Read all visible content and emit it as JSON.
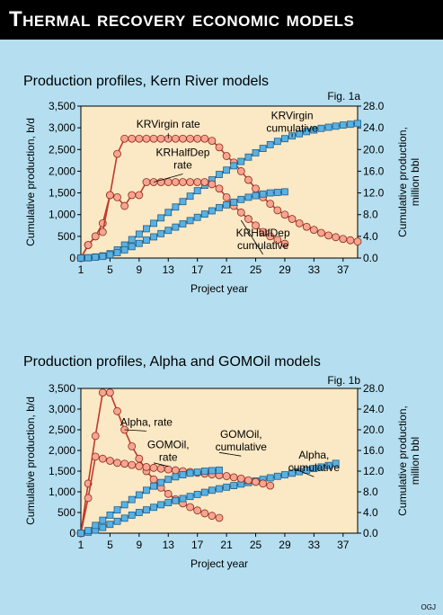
{
  "header": {
    "title": "Thermal recovery economic models"
  },
  "credit": "OGJ",
  "colors": {
    "background": "#b5dff0",
    "plot_area": "#fbe8c4",
    "rate_marker": "#f7a491",
    "rate_line": "#c0392b",
    "cumulative_marker": "#59b1e2",
    "cumulative_line": "#1f5e8a",
    "header": "#000000"
  },
  "chart_data": [
    {
      "type": "line",
      "title": "Production profiles, Kern River models",
      "figure_label": "Fig. 1a",
      "xlabel": "Project year",
      "ylabel": "Cumulative production, b/d",
      "y2label_lines": [
        "Cumulative production,",
        "million bbl"
      ],
      "xlim": [
        1,
        39
      ],
      "ylim": [
        0,
        3500
      ],
      "y2lim": [
        0,
        28
      ],
      "xticks": [
        "1",
        "5",
        "9",
        "13",
        "17",
        "21",
        "25",
        "29",
        "33",
        "37"
      ],
      "yticks": [
        "0",
        "500",
        "1,000",
        "1,500",
        "2,000",
        "2,500",
        "3,000",
        "3,500"
      ],
      "y2ticks": [
        "0.0",
        "4.0",
        "8.0",
        "12.0",
        "16.0",
        "20.0",
        "24.0",
        "28.0"
      ],
      "grid": false,
      "series": [
        {
          "name": "KRVirgin rate",
          "axis": "left",
          "kind": "rate",
          "x": [
            1,
            2,
            3,
            4,
            5,
            6,
            7,
            8,
            9,
            10,
            11,
            12,
            13,
            14,
            15,
            16,
            17,
            18,
            19,
            20,
            21,
            22,
            23,
            24,
            25,
            26,
            27,
            28,
            29,
            30,
            31,
            32,
            33,
            34,
            35,
            36,
            37,
            38,
            39
          ],
          "y": [
            0,
            300,
            500,
            800,
            1450,
            2400,
            2750,
            2750,
            2750,
            2750,
            2750,
            2750,
            2750,
            2750,
            2750,
            2750,
            2750,
            2750,
            2700,
            2550,
            2350,
            2200,
            2000,
            1800,
            1600,
            1400,
            1250,
            1100,
            1000,
            900,
            800,
            720,
            650,
            580,
            520,
            480,
            440,
            410,
            380
          ]
        },
        {
          "name": "KRVirgin cumulative",
          "axis": "right",
          "kind": "cumulative",
          "x": [
            1,
            2,
            3,
            4,
            5,
            6,
            7,
            8,
            9,
            10,
            11,
            12,
            13,
            14,
            15,
            16,
            17,
            18,
            19,
            20,
            21,
            22,
            23,
            24,
            25,
            26,
            27,
            28,
            29,
            30,
            31,
            32,
            33,
            34,
            35,
            36,
            37,
            38,
            39
          ],
          "y": [
            0,
            0.05,
            0.2,
            0.4,
            0.8,
            1.5,
            2.4,
            3.4,
            4.4,
            5.4,
            6.4,
            7.4,
            8.4,
            9.4,
            10.4,
            11.4,
            12.4,
            13.4,
            14.4,
            15.4,
            16.2,
            17.0,
            17.8,
            18.6,
            19.4,
            20.2,
            20.9,
            21.5,
            22.0,
            22.5,
            22.9,
            23.3,
            23.6,
            23.9,
            24.1,
            24.3,
            24.5,
            24.65,
            24.8
          ]
        },
        {
          "name": "KRHalfDep rate",
          "axis": "left",
          "kind": "rate",
          "x": [
            1,
            2,
            3,
            4,
            5,
            6,
            7,
            8,
            9,
            10,
            11,
            12,
            13,
            14,
            15,
            16,
            17,
            18,
            19,
            20,
            21,
            22,
            23,
            24,
            25,
            26,
            27,
            28,
            29
          ],
          "y": [
            0,
            300,
            500,
            600,
            1450,
            1400,
            1200,
            1450,
            1450,
            1750,
            1750,
            1750,
            1750,
            1750,
            1750,
            1750,
            1750,
            1750,
            1700,
            1600,
            1400,
            1200,
            1050,
            900,
            750,
            600,
            500,
            420,
            330
          ]
        },
        {
          "name": "KRHalfDep cumulative",
          "axis": "right",
          "kind": "cumulative",
          "x": [
            1,
            2,
            3,
            4,
            5,
            6,
            7,
            8,
            9,
            10,
            11,
            12,
            13,
            14,
            15,
            16,
            17,
            18,
            19,
            20,
            21,
            22,
            23,
            24,
            25,
            26,
            27,
            28,
            29
          ],
          "y": [
            0,
            0.05,
            0.15,
            0.3,
            0.6,
            1.0,
            1.5,
            2.1,
            2.7,
            3.3,
            3.9,
            4.5,
            5.1,
            5.7,
            6.3,
            6.9,
            7.5,
            8.1,
            8.7,
            9.3,
            9.8,
            10.3,
            10.8,
            11.2,
            11.5,
            11.8,
            12.0,
            12.1,
            12.2
          ]
        }
      ],
      "annotations": [
        {
          "text": [
            "KRVirgin rate"
          ],
          "x": 13,
          "y": 3000,
          "target": [
            13,
            2750
          ]
        },
        {
          "text": [
            "KRVirgin",
            "cumulative"
          ],
          "x": 30,
          "y": 3200,
          "target": [
            30,
            2870
          ]
        },
        {
          "text": [
            "KRHalfDep",
            "rate"
          ],
          "x": 15,
          "y": 2350,
          "target": [
            11,
            1750
          ]
        },
        {
          "text": [
            "KRHalfDep",
            "cumulative"
          ],
          "x": 26,
          "y": 500,
          "target": [
            23,
            870
          ]
        }
      ]
    },
    {
      "type": "line",
      "title": "Production profiles, Alpha and GOMOil models",
      "figure_label": "Fig. 1b",
      "xlabel": "Project year",
      "ylabel": "Cumulative production, b/d",
      "y2label_lines": [
        "Cumulative production,",
        "million bbl"
      ],
      "xlim": [
        1,
        39
      ],
      "ylim": [
        0,
        3500
      ],
      "y2lim": [
        0,
        28
      ],
      "xticks": [
        "1",
        "5",
        "9",
        "13",
        "17",
        "21",
        "25",
        "29",
        "33",
        "37"
      ],
      "yticks": [
        "0",
        "500",
        "1,000",
        "1,500",
        "2,000",
        "2,500",
        "3,000",
        "3,500"
      ],
      "y2ticks": [
        "0.0",
        "4.0",
        "8.0",
        "12.0",
        "16.0",
        "20.0",
        "24.0",
        "28.0"
      ],
      "grid": false,
      "series": [
        {
          "name": "Alpha, rate",
          "axis": "left",
          "kind": "rate",
          "x": [
            1,
            2,
            3,
            4,
            5,
            6,
            7,
            8,
            9,
            10,
            11,
            12,
            13,
            14,
            15,
            16,
            17,
            18,
            19,
            20
          ],
          "y": [
            0,
            1200,
            2350,
            3400,
            3400,
            2950,
            2500,
            2100,
            1800,
            1500,
            1300,
            1100,
            950,
            820,
            720,
            630,
            550,
            480,
            420,
            370
          ]
        },
        {
          "name": "Alpha, cumulative",
          "axis": "right",
          "kind": "cumulative",
          "x": [
            1,
            2,
            3,
            4,
            5,
            6,
            7,
            8,
            9,
            10,
            11,
            12,
            13,
            14,
            15,
            16,
            17,
            18,
            19,
            20,
            21,
            22,
            23,
            24,
            25,
            26,
            27,
            28,
            29,
            30,
            31,
            32,
            33,
            34,
            35,
            36
          ],
          "y": [
            0,
            0.2,
            0.6,
            1.1,
            1.7,
            2.3,
            2.9,
            3.5,
            4.0,
            4.5,
            5.0,
            5.5,
            5.9,
            6.3,
            6.7,
            7.1,
            7.5,
            7.9,
            8.3,
            8.6,
            8.9,
            9.2,
            9.5,
            9.8,
            10.1,
            10.4,
            10.7,
            11.0,
            11.3,
            11.6,
            11.9,
            12.2,
            12.5,
            12.8,
            13.1,
            13.5
          ]
        },
        {
          "name": "GOMOil, rate",
          "axis": "left",
          "kind": "rate",
          "x": [
            1,
            2,
            3,
            4,
            5,
            6,
            7,
            8,
            9,
            10,
            11,
            12,
            13,
            14,
            15,
            16,
            17,
            18,
            19,
            20,
            21,
            22,
            23,
            24,
            25,
            26,
            27
          ],
          "y": [
            0,
            850,
            1850,
            1800,
            1750,
            1700,
            1680,
            1650,
            1620,
            1600,
            1580,
            1560,
            1540,
            1520,
            1500,
            1480,
            1460,
            1440,
            1420,
            1400,
            1380,
            1350,
            1320,
            1280,
            1240,
            1200,
            1150
          ]
        },
        {
          "name": "GOMOil, cumulative",
          "axis": "right",
          "kind": "cumulative",
          "x": [
            1,
            2,
            3,
            4,
            5,
            6,
            7,
            8,
            9,
            10,
            11,
            12,
            13,
            14,
            15,
            16,
            17,
            18,
            19,
            20
          ],
          "y": [
            0,
            0.5,
            1.5,
            2.5,
            3.5,
            4.5,
            5.5,
            6.5,
            7.4,
            8.3,
            9.1,
            9.8,
            10.4,
            10.9,
            11.3,
            11.6,
            11.8,
            12.0,
            12.1,
            12.2
          ]
        }
      ],
      "annotations": [
        {
          "text": [
            "Alpha, rate"
          ],
          "x": 10,
          "y": 2600,
          "target": [
            7,
            2500
          ]
        },
        {
          "text": [
            "GOMOil,",
            "rate"
          ],
          "x": 13,
          "y": 2050,
          "target": [
            11,
            1700
          ]
        },
        {
          "text": [
            "GOMOil,",
            "cumulative"
          ],
          "x": 23,
          "y": 2300,
          "target": [
            20,
            1950
          ]
        },
        {
          "text": [
            "Alpha,",
            "cumulative"
          ],
          "x": 33,
          "y": 1800,
          "target": [
            30,
            1580
          ]
        }
      ]
    }
  ]
}
